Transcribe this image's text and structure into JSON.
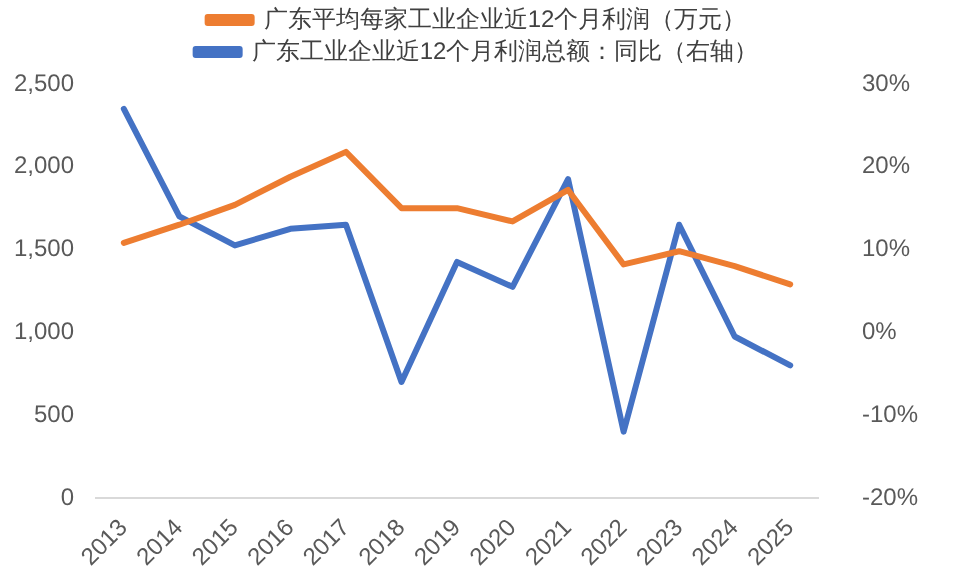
{
  "chart_data": {
    "type": "line",
    "categories": [
      "2013",
      "2014",
      "2015",
      "2016",
      "2017",
      "2018",
      "2019",
      "2020",
      "2021",
      "2022",
      "2023",
      "2024",
      "2025"
    ],
    "series": [
      {
        "name": "广东平均每家工业企业近12个月利润（万元）",
        "color": "#ed7d31",
        "values": [
          1540,
          1650,
          1770,
          1940,
          2090,
          1750,
          1750,
          1670,
          1860,
          1410,
          1490,
          1400,
          1290
        ]
      },
      {
        "name": "广东工业企业近12个月利润总额：同比（右轴）",
        "color": "#4472c4",
        "axis": "y2",
        "values": [
          27,
          14,
          10.5,
          12.5,
          13,
          -6,
          8.5,
          5.5,
          18.5,
          -12,
          13,
          -0.5,
          -4
        ]
      }
    ],
    "ylim": [
      0,
      2500
    ],
    "yticks": [
      {
        "value": 0,
        "label": "0"
      },
      {
        "value": 500,
        "label": "500"
      },
      {
        "value": 1000,
        "label": "1,000"
      },
      {
        "value": 1500,
        "label": "1,500"
      },
      {
        "value": 2000,
        "label": "2,000"
      },
      {
        "value": 2500,
        "label": "2,500"
      }
    ],
    "y2lim": [
      -20,
      30
    ],
    "y2ticks": [
      {
        "value": -20,
        "label": "-20%"
      },
      {
        "value": -10,
        "label": "-10%"
      },
      {
        "value": 0,
        "label": "0%"
      },
      {
        "value": 10,
        "label": "10%"
      },
      {
        "value": 20,
        "label": "20%"
      },
      {
        "value": 30,
        "label": "30%"
      }
    ],
    "grid": false,
    "legend": "top",
    "marker": "none",
    "line_style": "solid"
  }
}
